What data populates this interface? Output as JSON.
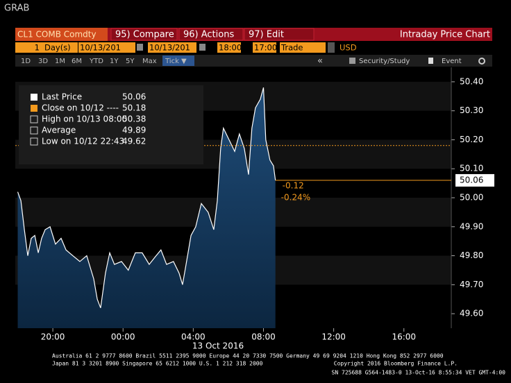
{
  "header": {
    "title": "GRAB"
  },
  "toolbar": {
    "security": "CL1 COMB Comdty",
    "buttons": [
      "95) Compare",
      "96) Actions",
      "97) Edit"
    ],
    "title": "Intraday Price Chart"
  },
  "settings": {
    "count": "1",
    "unit": "Day(s)",
    "start_date": "10/13/201",
    "date_sep": "-",
    "end_date": "10/13/201",
    "start_time": "18:00",
    "time_sep": "-",
    "end_time": "17:00",
    "field": "Trade",
    "currency": "USD"
  },
  "ranges": {
    "buttons": [
      "1D",
      "3D",
      "1M",
      "6M",
      "YTD",
      "1Y",
      "5Y",
      "Max",
      "Tick ▼"
    ],
    "right": [
      "«",
      "Security/Study",
      "Event"
    ]
  },
  "chart_data": {
    "type": "line",
    "x": [
      18.0,
      18.18,
      18.38,
      18.57,
      18.77,
      18.97,
      19.17,
      19.36,
      19.56,
      19.84,
      20.15,
      20.47,
      20.75,
      21.14,
      21.54,
      21.93,
      22.33,
      22.53,
      22.72,
      23.0,
      23.24,
      23.51,
      23.91,
      24.3,
      24.7,
      25.09,
      25.49,
      25.88,
      26.16,
      26.48,
      26.87,
      27.19,
      27.39,
      27.59,
      27.87,
      28.14,
      28.46,
      28.85,
      29.17,
      29.37,
      29.56,
      29.72,
      30.04,
      30.36,
      30.63,
      30.91,
      31.15,
      31.34,
      31.54,
      31.82,
      32.0,
      32.13,
      32.37,
      32.57,
      32.68
    ],
    "series": [
      {
        "name": "Last Price",
        "color": "#ffffff",
        "values": [
          50.02,
          49.99,
          49.89,
          49.8,
          49.86,
          49.87,
          49.81,
          49.86,
          49.89,
          49.9,
          49.84,
          49.86,
          49.82,
          49.8,
          49.78,
          49.8,
          49.72,
          49.65,
          49.62,
          49.74,
          49.81,
          49.77,
          49.78,
          49.75,
          49.81,
          49.81,
          49.77,
          49.8,
          49.82,
          49.77,
          49.78,
          49.74,
          49.7,
          49.77,
          49.87,
          49.9,
          49.98,
          49.95,
          49.89,
          49.99,
          50.17,
          50.24,
          50.2,
          50.16,
          50.22,
          50.17,
          50.08,
          50.24,
          50.31,
          50.34,
          50.38,
          50.2,
          50.13,
          50.11,
          50.06
        ]
      }
    ],
    "legend": [
      {
        "label": "Last Price",
        "value": 50.06
      },
      {
        "label": "Close on 10/12 ----",
        "value": 50.18
      },
      {
        "label": "High on 10/13 08:00",
        "value": 50.38
      },
      {
        "label": "Average",
        "value": 49.89
      },
      {
        "label": "Low on 10/12 22:43",
        "value": 49.62
      }
    ],
    "change": -0.12,
    "change_pct": "-0.24%",
    "xlabel": "13 Oct 2016",
    "xlim": [
      17.86,
      42.7
    ],
    "xticks": [
      {
        "value": 20,
        "label": "20:00"
      },
      {
        "value": 24,
        "label": "00:00"
      },
      {
        "value": 28,
        "label": "04:00"
      },
      {
        "value": 32,
        "label": "08:00"
      },
      {
        "value": 36,
        "label": "12:00"
      },
      {
        "value": 40,
        "label": "16:00"
      }
    ],
    "ylim": [
      49.55,
      50.45
    ],
    "yticks": [
      {
        "value": 50.4,
        "label": "50.40"
      },
      {
        "value": 50.3,
        "label": "50.30"
      },
      {
        "value": 50.2,
        "label": "50.20"
      },
      {
        "value": 50.1,
        "label": "50.10"
      },
      {
        "value": 50.0,
        "label": "50.00"
      },
      {
        "value": 49.9,
        "label": "49.90"
      },
      {
        "value": 49.8,
        "label": "49.80"
      },
      {
        "value": 49.7,
        "label": "49.70"
      },
      {
        "value": 49.6,
        "label": "49.60"
      }
    ],
    "close_color": "#f39a1e"
  },
  "footer": {
    "line1": "Australia 61 2 9777 8600 Brazil 5511 2395 9000 Europe 44 20 7330 7500 Germany 49 69 9204 1210 Hong Kong 852 2977 6000",
    "line2": "Japan 81 3 3201 8900 Singapore 65 6212 1000 U.S. 1 212 318 2000",
    "copyright": "Copyright 2016 Bloomberg Finance L.P.",
    "status": "SN 725688 G564-1483-0 13-Oct-16 8:55:34 VET GMT-4:00"
  }
}
